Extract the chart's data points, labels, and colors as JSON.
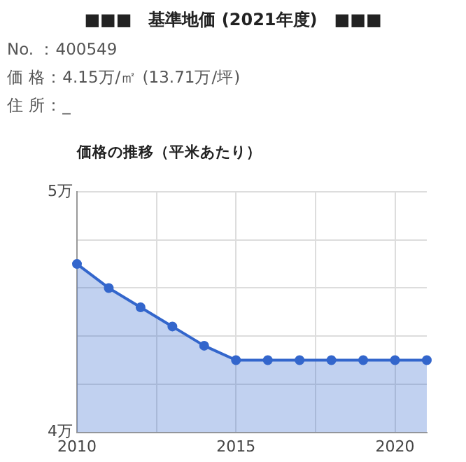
{
  "chart_data": {
    "type": "area",
    "title": "■■■　基準地価 (2021年度)　■■■",
    "annotations": [
      "No. ：400549",
      "価 格：4.15万/㎡ (13.71万/坪)",
      "住 所：_"
    ],
    "subtitle": "価格の推移（平米あたり）",
    "x": [
      2010,
      2011,
      2012,
      2013,
      2014,
      2015,
      2016,
      2017,
      2018,
      2019,
      2020,
      2021
    ],
    "series": [
      {
        "color": "#3366cc",
        "values": [
          4.7,
          4.6,
          4.52,
          4.44,
          4.36,
          4.3,
          4.3,
          4.3,
          4.3,
          4.3,
          4.3,
          4.3
        ]
      }
    ],
    "xlim": [
      2010,
      2021
    ],
    "xticks": [
      2010,
      {
        "value": 2012.5,
        "label": null
      },
      2015,
      {
        "value": 2017.5,
        "label": null
      },
      2020
    ],
    "ylim": [
      4,
      5
    ],
    "yticks": [
      {
        "value": 4,
        "label": "4万"
      },
      {
        "value": 4.2,
        "label": null
      },
      {
        "value": 4.4,
        "label": null
      },
      {
        "value": 4.6,
        "label": null
      },
      {
        "value": 4.8,
        "label": null
      },
      {
        "value": 5,
        "label": "5万"
      }
    ],
    "grid": true,
    "legend": false,
    "marker": "circle",
    "line_style": "solid"
  }
}
